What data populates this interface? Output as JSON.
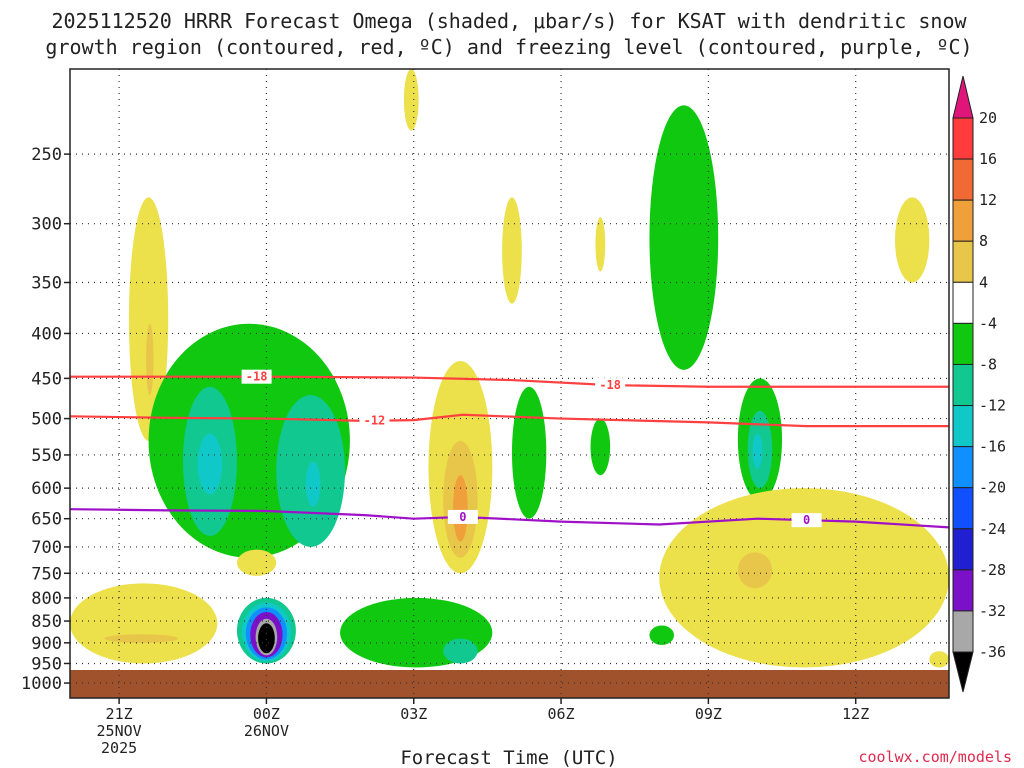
{
  "chart_data": {
    "type": "heatmap",
    "title_line1": "2025112520 HRRR Forecast Omega (shaded, μbar/s) for KSAT with dendritic snow",
    "title_line2": "growth region (contoured, red, ºC) and freezing level (contoured, purple, ºC)",
    "xlabel": "Forecast Time (UTC)",
    "credit": "coolwx.com/models",
    "x_ticks": [
      {
        "h": -3,
        "lines": [
          "21Z",
          "25NOV",
          "2025"
        ]
      },
      {
        "h": 0,
        "lines": [
          "00Z",
          "26NOV"
        ]
      },
      {
        "h": 3,
        "lines": [
          "03Z"
        ]
      },
      {
        "h": 6,
        "lines": [
          "06Z"
        ]
      },
      {
        "h": 9,
        "lines": [
          "09Z"
        ]
      },
      {
        "h": 12,
        "lines": [
          "12Z"
        ]
      }
    ],
    "xlim": [
      -4,
      13.9
    ],
    "y_ticks": [
      250,
      300,
      350,
      400,
      450,
      500,
      550,
      600,
      650,
      700,
      750,
      800,
      850,
      900,
      950,
      1000
    ],
    "ylim_hpa": [
      1040,
      200
    ],
    "colorbar_labels": [
      "20",
      "16",
      "12",
      "8",
      "4",
      "-4",
      "-8",
      "-12",
      "-16",
      "-20",
      "-24",
      "-28",
      "-32",
      "-36"
    ],
    "colorbar_colors": [
      "#ff3b3b",
      "#f26a33",
      "#f0a03a",
      "#e8c64a",
      "#ece04b",
      "#ffffff",
      "#10c810",
      "#10c890",
      "#10c8c8",
      "#1090ff",
      "#1050ff",
      "#2020d0",
      "#7a10c8",
      "#a010c8",
      "#a8a8a8",
      "#000000"
    ],
    "colorbar_top_color": "#e0157a",
    "isotherm_labels": [
      "-18",
      "-18",
      "-12",
      "0",
      "0"
    ],
    "isotherms": [
      {
        "label": "-18",
        "color": "#ff4040",
        "points": [
          [
            -4,
            448
          ],
          [
            0,
            448
          ],
          [
            3,
            449
          ],
          [
            5,
            452
          ],
          [
            7,
            458
          ],
          [
            9,
            460
          ],
          [
            11,
            460
          ],
          [
            13.9,
            460
          ]
        ]
      },
      {
        "label": "-12",
        "color": "#ff4040",
        "points": [
          [
            -4,
            497
          ],
          [
            -2,
            499
          ],
          [
            0,
            500
          ],
          [
            2,
            503
          ],
          [
            3,
            502
          ],
          [
            4,
            495
          ],
          [
            6,
            500
          ],
          [
            9,
            505
          ],
          [
            11,
            510
          ],
          [
            13.9,
            510
          ]
        ]
      },
      {
        "label": "0",
        "color": "#a010c8",
        "points": [
          [
            -4,
            634
          ],
          [
            -2,
            636
          ],
          [
            0,
            637
          ],
          [
            2,
            644
          ],
          [
            3,
            650
          ],
          [
            4,
            647
          ],
          [
            6,
            655
          ],
          [
            8,
            660
          ],
          [
            10,
            650
          ],
          [
            12,
            655
          ],
          [
            13.9,
            665
          ]
        ]
      }
    ],
    "omega_regions": [
      {
        "value": 4,
        "t0": -2.8,
        "t1": -2.0,
        "p0": 280,
        "p1": 530
      },
      {
        "value": 8,
        "t0": -2.45,
        "t1": -2.3,
        "p0": 390,
        "p1": 470
      },
      {
        "value": -8,
        "t0": -2.4,
        "t1": 1.7,
        "p0": 390,
        "p1": 720
      },
      {
        "value": -12,
        "t0": -1.7,
        "t1": -0.6,
        "p0": 460,
        "p1": 680
      },
      {
        "value": -16,
        "t0": -1.4,
        "t1": -0.9,
        "p0": 520,
        "p1": 610
      },
      {
        "value": -12,
        "t0": 0.2,
        "t1": 1.6,
        "p0": 470,
        "p1": 700
      },
      {
        "value": -16,
        "t0": 0.8,
        "t1": 1.1,
        "p0": 560,
        "p1": 630
      },
      {
        "value": 4,
        "t0": 3.3,
        "t1": 4.6,
        "p0": 430,
        "p1": 750
      },
      {
        "value": 8,
        "t0": 3.6,
        "t1": 4.3,
        "p0": 530,
        "p1": 720
      },
      {
        "value": 12,
        "t0": 3.8,
        "t1": 4.1,
        "p0": 580,
        "p1": 690
      },
      {
        "value": -8,
        "t0": 5.0,
        "t1": 5.7,
        "p0": 460,
        "p1": 650
      },
      {
        "value": -8,
        "t0": 6.6,
        "t1": 7.0,
        "p0": 500,
        "p1": 580
      },
      {
        "value": 4,
        "t0": 2.8,
        "t1": 3.1,
        "p0": 200,
        "p1": 235
      },
      {
        "value": 4,
        "t0": 4.8,
        "t1": 5.2,
        "p0": 280,
        "p1": 370
      },
      {
        "value": 4,
        "t0": 6.7,
        "t1": 6.9,
        "p0": 295,
        "p1": 340
      },
      {
        "value": -8,
        "t0": 7.8,
        "t1": 9.2,
        "p0": 220,
        "p1": 440
      },
      {
        "value": -8,
        "t0": 9.6,
        "t1": 10.5,
        "p0": 450,
        "p1": 620
      },
      {
        "value": -12,
        "t0": 9.8,
        "t1": 10.3,
        "p0": 490,
        "p1": 600
      },
      {
        "value": -16,
        "t0": 9.9,
        "t1": 10.1,
        "p0": 520,
        "p1": 570
      },
      {
        "value": 4,
        "t0": 12.8,
        "t1": 13.5,
        "p0": 280,
        "p1": 350
      },
      {
        "value": 4,
        "t0": 8.0,
        "t1": 13.9,
        "p0": 600,
        "p1": 960
      },
      {
        "value": 8,
        "t0": 9.6,
        "t1": 10.3,
        "p0": 710,
        "p1": 780
      },
      {
        "value": 4,
        "t0": -4.0,
        "t1": -1.0,
        "p0": 770,
        "p1": 950
      },
      {
        "value": 8,
        "t0": -3.3,
        "t1": -1.8,
        "p0": 880,
        "p1": 900
      },
      {
        "value": 4,
        "t0": -0.6,
        "t1": 0.2,
        "p0": 705,
        "p1": 755
      },
      {
        "value": -8,
        "t0": 1.5,
        "t1": 4.6,
        "p0": 800,
        "p1": 960
      },
      {
        "value": -12,
        "t0": 3.6,
        "t1": 4.3,
        "p0": 890,
        "p1": 950
      },
      {
        "value": -8,
        "t0": 7.8,
        "t1": 8.3,
        "p0": 860,
        "p1": 905
      },
      {
        "value": 4,
        "t0": 13.5,
        "t1": 13.9,
        "p0": 920,
        "p1": 960
      },
      {
        "value": -4,
        "t0": -0.7,
        "t1": 0.7,
        "p0": 790,
        "p1": 960
      },
      {
        "value": -12,
        "t0": -0.6,
        "t1": 0.6,
        "p0": 800,
        "p1": 950
      },
      {
        "value": -16,
        "t0": -0.5,
        "t1": 0.5,
        "p0": 810,
        "p1": 945
      },
      {
        "value": -20,
        "t0": -0.42,
        "t1": 0.42,
        "p0": 820,
        "p1": 940
      },
      {
        "value": -28,
        "t0": -0.33,
        "t1": 0.33,
        "p0": 830,
        "p1": 935
      },
      {
        "value": -32,
        "t0": -0.22,
        "t1": 0.22,
        "p0": 845,
        "p1": 930
      },
      {
        "value": -36,
        "t0": -0.17,
        "t1": 0.17,
        "p0": 855,
        "p1": 925
      }
    ],
    "ground_color": "#a0522d",
    "ground_top_hpa": 980
  }
}
